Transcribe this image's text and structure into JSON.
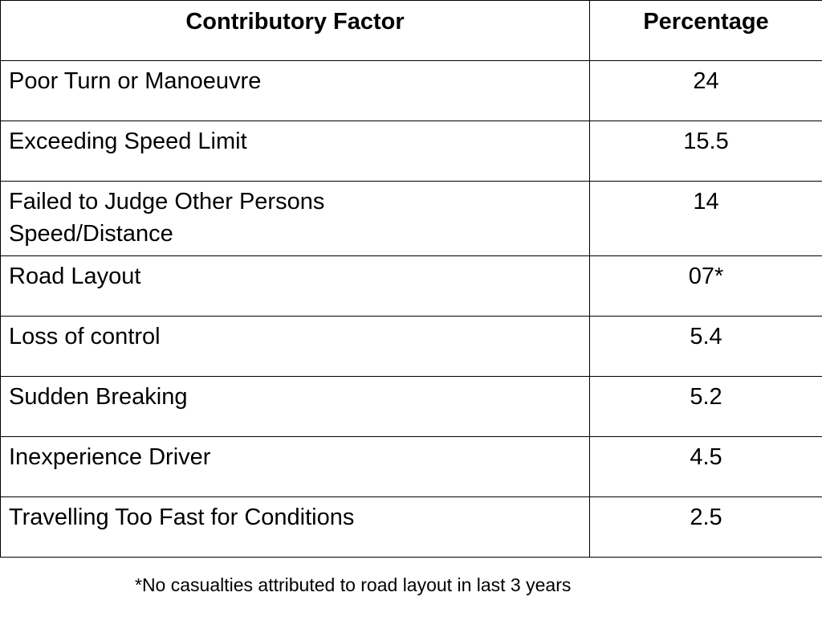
{
  "table": {
    "headers": {
      "factor": "Contributory Factor",
      "percentage": "Percentage"
    },
    "rows": [
      {
        "factor": "Poor Turn or Manoeuvre",
        "percentage": "24"
      },
      {
        "factor": "Exceeding Speed Limit",
        "percentage": "15.5"
      },
      {
        "factor": "Failed to Judge Other Persons Speed/Distance",
        "percentage": "14"
      },
      {
        "factor": "Road Layout",
        "percentage": "07*"
      },
      {
        "factor": "Loss of control",
        "percentage": "5.4"
      },
      {
        "factor": "Sudden Breaking",
        "percentage": "5.2"
      },
      {
        "factor": "Inexperience Driver",
        "percentage": "4.5"
      },
      {
        "factor": "Travelling Too Fast for Conditions",
        "percentage": "2.5"
      }
    ]
  },
  "footnote": "*No casualties attributed to road layout in last 3 years"
}
